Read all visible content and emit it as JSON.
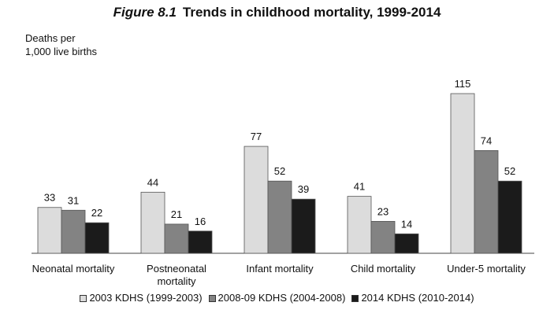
{
  "figure_label": "Figure 8.1",
  "figure_title": "Trends in childhood mortality, 1999-2014",
  "ylabel_line1": "Deaths per",
  "ylabel_line2": "1,000 live births",
  "chart_data": {
    "type": "bar",
    "title": "Figure 8.1 Trends in childhood mortality, 1999-2014",
    "ylabel": "Deaths per 1,000 live births",
    "xlabel": "",
    "categories": [
      [
        "Neonatal mortality"
      ],
      [
        "Postneonatal",
        "mortality"
      ],
      [
        "Infant mortality"
      ],
      [
        "Child mortality"
      ],
      [
        "Under-5 mortality"
      ]
    ],
    "series": [
      {
        "name": "2003 KDHS (1999-2003)",
        "color": "#dcdcdc",
        "values": [
          33,
          44,
          77,
          41,
          115
        ]
      },
      {
        "name": "2008-09 KDHS (2004-2008)",
        "color": "#838383",
        "values": [
          31,
          21,
          52,
          23,
          74
        ]
      },
      {
        "name": "2014 KDHS (2010-2014)",
        "color": "#1b1b1b",
        "values": [
          22,
          16,
          39,
          14,
          52
        ]
      }
    ],
    "ylim": [
      0,
      115
    ],
    "grid": false,
    "legend_position": "bottom",
    "data_labels": true
  }
}
